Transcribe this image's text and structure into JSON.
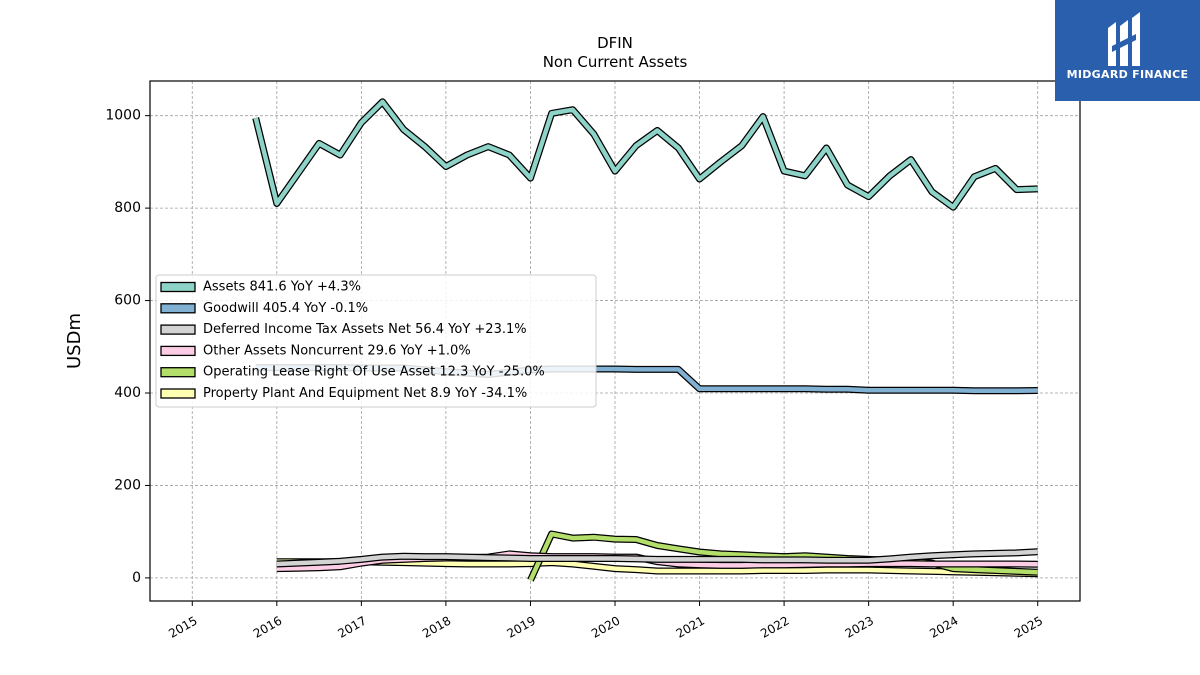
{
  "brand": {
    "name": "MIDGARD FINANCE",
    "color": "#2a5fae"
  },
  "chart_data": {
    "type": "line",
    "title": "DFIN",
    "subtitle": "Non Current  Assets",
    "ylabel": "USDm",
    "xlabel": "",
    "xlim": [
      2014.5,
      2025.5
    ],
    "ylim": [
      -50,
      1075
    ],
    "x_ticks": [
      "2015",
      "2016",
      "2017",
      "2018",
      "2019",
      "2020",
      "2021",
      "2022",
      "2023",
      "2024",
      "2025"
    ],
    "y_ticks": [
      "0",
      "200",
      "400",
      "600",
      "800",
      "1000"
    ],
    "grid": true,
    "legend_position": "center-left",
    "series": [
      {
        "name": "Assets  841.6 YoY +4.3%",
        "color": "#8dd3c7",
        "points": [
          [
            2015.75,
            995
          ],
          [
            2016.0,
            810
          ],
          [
            2016.25,
            875
          ],
          [
            2016.5,
            940
          ],
          [
            2016.75,
            915
          ],
          [
            2017.0,
            985
          ],
          [
            2017.25,
            1030
          ],
          [
            2017.5,
            970
          ],
          [
            2017.75,
            933
          ],
          [
            2018.0,
            890
          ],
          [
            2018.25,
            915
          ],
          [
            2018.5,
            933
          ],
          [
            2018.75,
            915
          ],
          [
            2019.0,
            865
          ],
          [
            2019.25,
            1005
          ],
          [
            2019.5,
            1013
          ],
          [
            2019.75,
            960
          ],
          [
            2020.0,
            880
          ],
          [
            2020.25,
            935
          ],
          [
            2020.5,
            968
          ],
          [
            2020.75,
            930
          ],
          [
            2021.0,
            863
          ],
          [
            2021.25,
            900
          ],
          [
            2021.5,
            935
          ],
          [
            2021.75,
            998
          ],
          [
            2022.0,
            880
          ],
          [
            2022.25,
            870
          ],
          [
            2022.5,
            930
          ],
          [
            2022.75,
            850
          ],
          [
            2023.0,
            825
          ],
          [
            2023.25,
            870
          ],
          [
            2023.5,
            905
          ],
          [
            2023.75,
            835
          ],
          [
            2024.0,
            802
          ],
          [
            2024.25,
            868
          ],
          [
            2024.5,
            886
          ],
          [
            2024.75,
            840
          ],
          [
            2025.0,
            841.6
          ]
        ]
      },
      {
        "name": "Goodwill  405.4 YoY -0.1%",
        "color": "#80b1d3",
        "points": [
          [
            2015.75,
            455
          ],
          [
            2016.0,
            455
          ],
          [
            2016.25,
            455
          ],
          [
            2016.5,
            455
          ],
          [
            2016.75,
            455
          ],
          [
            2017.0,
            454
          ],
          [
            2017.25,
            454
          ],
          [
            2017.5,
            454
          ],
          [
            2017.75,
            450
          ],
          [
            2018.0,
            446
          ],
          [
            2018.25,
            443
          ],
          [
            2018.5,
            440
          ],
          [
            2018.75,
            445
          ],
          [
            2019.0,
            450
          ],
          [
            2019.25,
            452
          ],
          [
            2019.5,
            452
          ],
          [
            2019.75,
            452
          ],
          [
            2020.0,
            452
          ],
          [
            2020.25,
            451
          ],
          [
            2020.5,
            451
          ],
          [
            2020.75,
            451
          ],
          [
            2021.0,
            409
          ],
          [
            2021.25,
            409
          ],
          [
            2021.5,
            409
          ],
          [
            2021.75,
            409
          ],
          [
            2022.0,
            409
          ],
          [
            2022.25,
            409
          ],
          [
            2022.5,
            408
          ],
          [
            2022.75,
            408
          ],
          [
            2023.0,
            406
          ],
          [
            2023.25,
            406
          ],
          [
            2023.5,
            406
          ],
          [
            2023.75,
            406
          ],
          [
            2024.0,
            406
          ],
          [
            2024.25,
            405
          ],
          [
            2024.5,
            405
          ],
          [
            2024.75,
            405
          ],
          [
            2025.0,
            405.4
          ]
        ]
      },
      {
        "name": "Deferred Income Tax Assets Net  56.4 YoY +23.1%",
        "color": "#d3d3d3",
        "points": [
          [
            2016.0,
            30
          ],
          [
            2016.25,
            32
          ],
          [
            2016.5,
            34
          ],
          [
            2016.75,
            36
          ],
          [
            2017.0,
            40
          ],
          [
            2017.25,
            45
          ],
          [
            2017.5,
            47
          ],
          [
            2017.75,
            46
          ],
          [
            2018.0,
            46
          ],
          [
            2018.25,
            45
          ],
          [
            2018.5,
            44
          ],
          [
            2018.75,
            43
          ],
          [
            2019.0,
            42
          ],
          [
            2019.25,
            42
          ],
          [
            2019.5,
            42
          ],
          [
            2019.75,
            42
          ],
          [
            2020.0,
            42
          ],
          [
            2020.25,
            41
          ],
          [
            2020.5,
            40
          ],
          [
            2020.75,
            40
          ],
          [
            2021.0,
            40
          ],
          [
            2021.25,
            40
          ],
          [
            2021.5,
            40
          ],
          [
            2021.75,
            39
          ],
          [
            2022.0,
            39
          ],
          [
            2022.25,
            39
          ],
          [
            2022.5,
            38
          ],
          [
            2022.75,
            38
          ],
          [
            2023.0,
            38
          ],
          [
            2023.25,
            41
          ],
          [
            2023.5,
            45
          ],
          [
            2023.75,
            48
          ],
          [
            2024.0,
            50
          ],
          [
            2024.25,
            52
          ],
          [
            2024.5,
            53
          ],
          [
            2024.75,
            54
          ],
          [
            2025.0,
            56.4
          ]
        ]
      },
      {
        "name": "Other Assets Noncurrent  29.6 YoY +1.0%",
        "color": "#fccde5",
        "points": [
          [
            2016.0,
            20
          ],
          [
            2016.25,
            21
          ],
          [
            2016.5,
            22
          ],
          [
            2016.75,
            24
          ],
          [
            2017.0,
            32
          ],
          [
            2017.25,
            38
          ],
          [
            2017.5,
            40
          ],
          [
            2017.75,
            42
          ],
          [
            2018.0,
            43
          ],
          [
            2018.25,
            44
          ],
          [
            2018.5,
            45
          ],
          [
            2018.75,
            52
          ],
          [
            2019.0,
            48
          ],
          [
            2019.25,
            46
          ],
          [
            2019.5,
            46
          ],
          [
            2019.75,
            46
          ],
          [
            2020.0,
            45
          ],
          [
            2020.25,
            45
          ],
          [
            2020.5,
            35
          ],
          [
            2020.75,
            30
          ],
          [
            2021.0,
            28
          ],
          [
            2021.25,
            27
          ],
          [
            2021.5,
            27
          ],
          [
            2021.75,
            28
          ],
          [
            2022.0,
            28
          ],
          [
            2022.25,
            29
          ],
          [
            2022.5,
            30
          ],
          [
            2022.75,
            30
          ],
          [
            2023.0,
            31
          ],
          [
            2023.25,
            31
          ],
          [
            2023.5,
            31
          ],
          [
            2023.75,
            30
          ],
          [
            2024.0,
            30
          ],
          [
            2024.25,
            30
          ],
          [
            2024.5,
            30
          ],
          [
            2024.75,
            30
          ],
          [
            2025.0,
            29.6
          ]
        ]
      },
      {
        "name": "Operating Lease Right Of Use Asset  12.3 YoY -25.0%",
        "color": "#b3de69",
        "points": [
          [
            2019.0,
            -5
          ],
          [
            2019.25,
            95
          ],
          [
            2019.5,
            86
          ],
          [
            2019.75,
            88
          ],
          [
            2020.0,
            84
          ],
          [
            2020.25,
            83
          ],
          [
            2020.5,
            70
          ],
          [
            2020.75,
            63
          ],
          [
            2021.0,
            56
          ],
          [
            2021.25,
            52
          ],
          [
            2021.5,
            50
          ],
          [
            2021.75,
            48
          ],
          [
            2022.0,
            46
          ],
          [
            2022.25,
            48
          ],
          [
            2022.5,
            45
          ],
          [
            2022.75,
            42
          ],
          [
            2023.0,
            40
          ],
          [
            2023.25,
            38
          ],
          [
            2023.5,
            36
          ],
          [
            2023.75,
            32
          ],
          [
            2024.0,
            20
          ],
          [
            2024.25,
            18
          ],
          [
            2024.5,
            16
          ],
          [
            2024.75,
            14
          ],
          [
            2025.0,
            12.3
          ]
        ]
      },
      {
        "name": "Property Plant And Equipment Net  8.9 YoY -34.1%",
        "color": "#ffffb3",
        "points": [
          [
            2016.0,
            35
          ],
          [
            2016.25,
            35
          ],
          [
            2016.5,
            35
          ],
          [
            2016.75,
            35
          ],
          [
            2017.0,
            35
          ],
          [
            2017.25,
            34
          ],
          [
            2017.5,
            33
          ],
          [
            2017.75,
            32
          ],
          [
            2018.0,
            31
          ],
          [
            2018.25,
            30
          ],
          [
            2018.5,
            30
          ],
          [
            2018.75,
            30
          ],
          [
            2019.0,
            31
          ],
          [
            2019.25,
            33
          ],
          [
            2019.5,
            30
          ],
          [
            2019.75,
            25
          ],
          [
            2020.0,
            20
          ],
          [
            2020.25,
            18
          ],
          [
            2020.5,
            15
          ],
          [
            2020.75,
            15
          ],
          [
            2021.0,
            15
          ],
          [
            2021.25,
            15
          ],
          [
            2021.5,
            15
          ],
          [
            2021.75,
            16
          ],
          [
            2022.0,
            16
          ],
          [
            2022.25,
            16
          ],
          [
            2022.5,
            17
          ],
          [
            2022.75,
            17
          ],
          [
            2023.0,
            17
          ],
          [
            2023.25,
            16
          ],
          [
            2023.5,
            15
          ],
          [
            2023.75,
            14
          ],
          [
            2024.0,
            13
          ],
          [
            2024.25,
            12
          ],
          [
            2024.5,
            11
          ],
          [
            2024.75,
            10
          ],
          [
            2025.0,
            8.9
          ]
        ]
      }
    ]
  }
}
